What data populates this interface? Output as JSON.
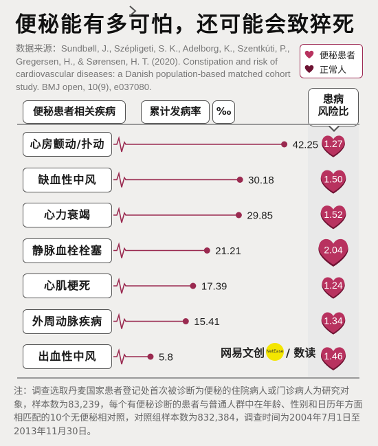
{
  "title": "便秘能有多可怕，还可能会致猝死",
  "source": "数据来源：Sundbøll, J., Szépligeti, S. K., Adelborg, K., Szentkúti, P., Gregersen, H., & Sørensen, H. T. (2020). Constipation and risk of cardiovascular diseases: a Danish population-based matched cohort study. BMJ open, 10(9), e037080.",
  "legend": {
    "items": [
      {
        "label": "便秘患者",
        "color": "#b8325f"
      },
      {
        "label": "正常人",
        "color": "#6d1232"
      }
    ]
  },
  "headers": {
    "disease": "便秘患者相关疾病",
    "incidence": "累计发病率",
    "unit": "‰",
    "risk_line1": "患病",
    "risk_line2": "风险比"
  },
  "chart_data": {
    "type": "bar",
    "categories": [
      "心房颤动/扑动",
      "缺血性中风",
      "心力衰竭",
      "静脉血栓栓塞",
      "心肌梗死",
      "外周动脉疾病",
      "出血性中风"
    ],
    "series": [
      {
        "name": "累计发病率",
        "values": [
          42.25,
          30.18,
          29.85,
          21.21,
          17.39,
          15.41,
          5.8
        ]
      },
      {
        "name": "患病风险比",
        "values": [
          1.27,
          1.5,
          1.52,
          2.04,
          1.24,
          1.34,
          1.46
        ]
      }
    ],
    "value_labels": [
      "42.25",
      "30.18",
      "29.85",
      "21.21",
      "17.39",
      "15.41",
      "5.8"
    ],
    "risk_labels": [
      "1.27",
      "1.50",
      "1.52",
      "2.04",
      "1.24",
      "1.34",
      "1.46"
    ],
    "xlim": [
      0,
      50
    ],
    "colors": {
      "line": "#9a2a50",
      "heart": "#b8325f",
      "heart_dark": "#6d1232"
    }
  },
  "watermark": {
    "brand": "网易文创",
    "badge": "NetEase",
    "suffix": "/ 数读"
  },
  "footnote": "注：调查选取丹麦国家患者登记处首次被诊断为便秘的住院病人或门诊病人为研究对象，样本数为83,239，每个有便秘诊断的患者与普通人群中在年龄、性别和日历年方面相匹配的10个无便秘相对照，对照组样本数为832,384，调查时间为2004年7月1日至2013年11月30日。"
}
